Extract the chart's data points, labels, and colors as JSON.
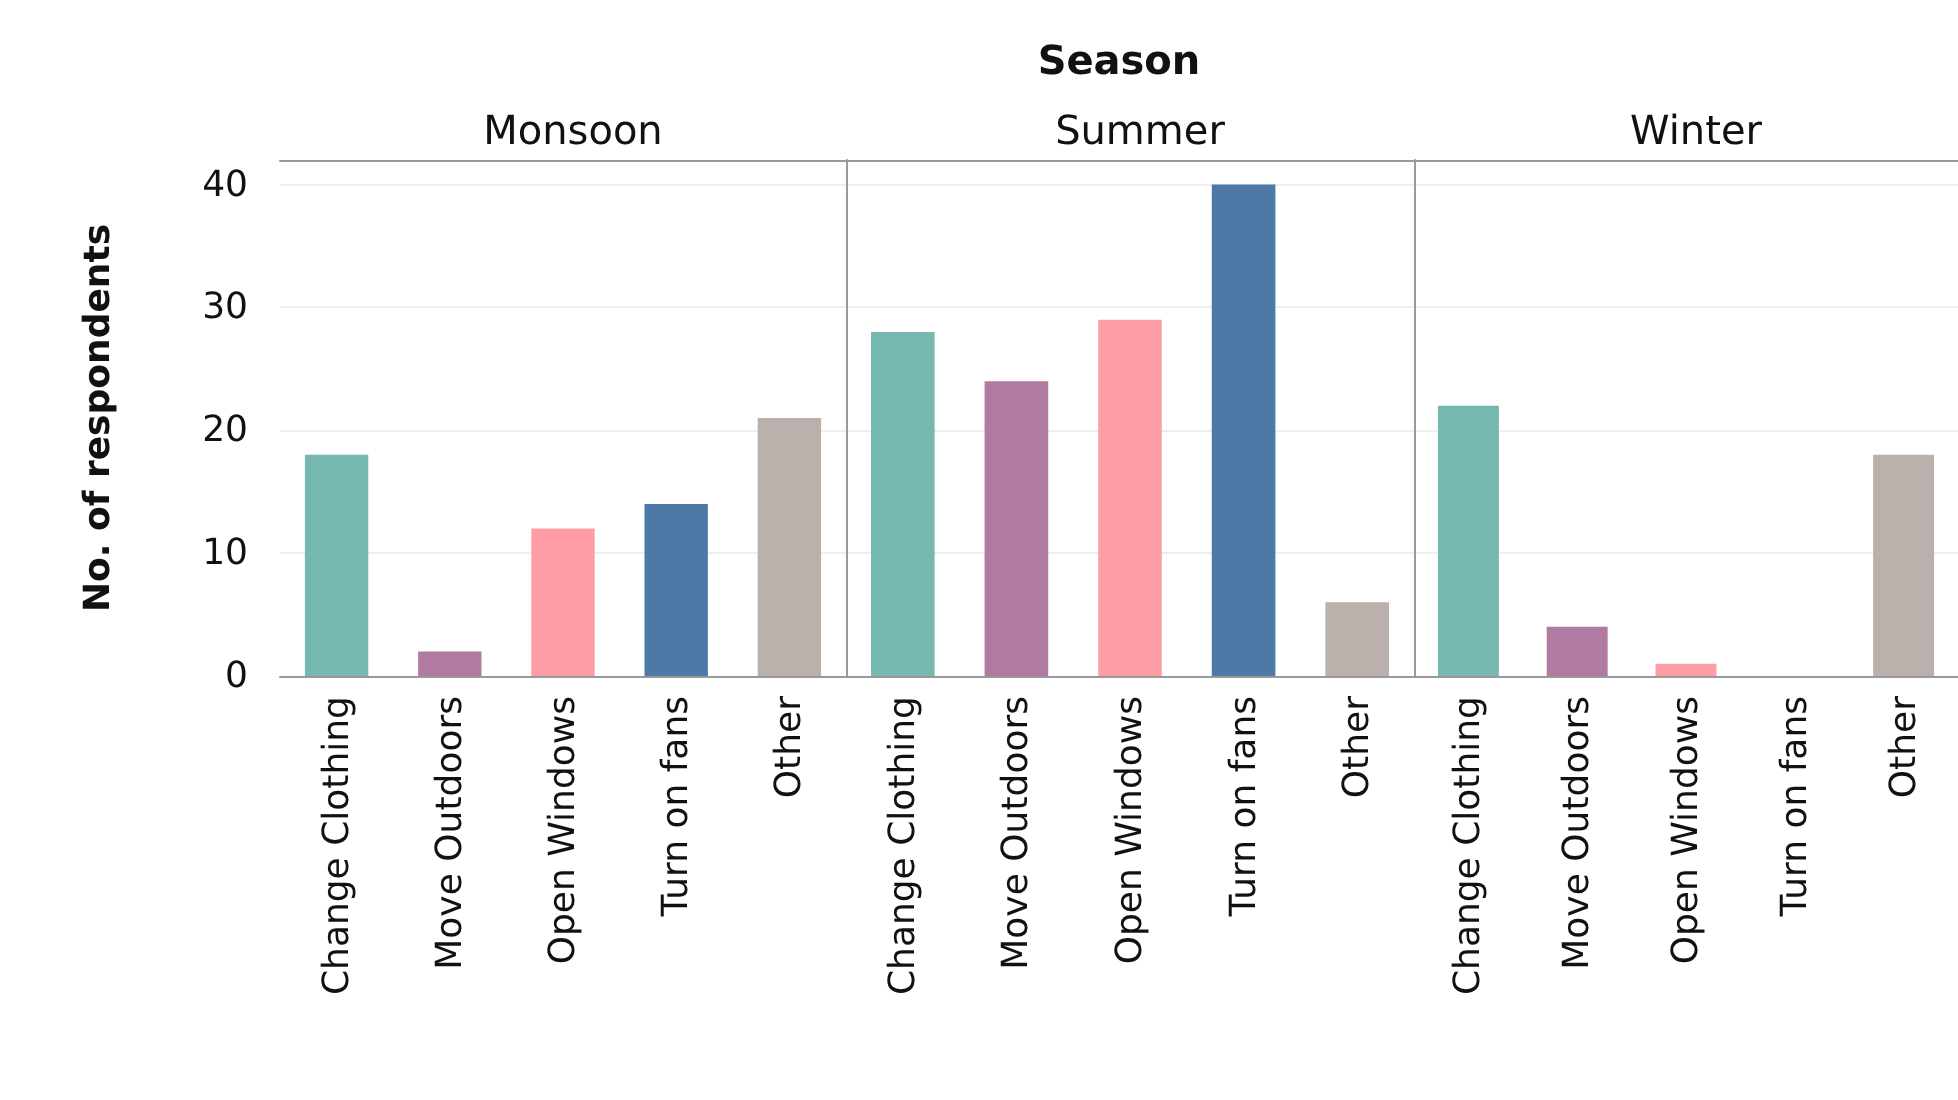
{
  "chart_data": [
    {
      "type": "bar",
      "title": "Monsoon",
      "annotations": [
        "Season"
      ],
      "ylabel": "No. of respondents",
      "categories": [
        "Change Clothing",
        "Move Outdoors",
        "Open Windows",
        "Turn on fans",
        "Other"
      ],
      "values": [
        18,
        2,
        12,
        14,
        21
      ],
      "colors": [
        "#76b7b2",
        "#b07aa1",
        "#ff9da7",
        "#4e79a7",
        "#bab0ac"
      ],
      "ylim": [
        0,
        42
      ],
      "yticks": [
        0,
        10,
        20,
        30,
        40
      ],
      "grid": "y"
    },
    {
      "type": "bar",
      "title": "Summer",
      "categories": [
        "Change Clothing",
        "Move Outdoors",
        "Open Windows",
        "Turn on fans",
        "Other"
      ],
      "values": [
        28,
        24,
        29,
        40,
        6
      ],
      "colors": [
        "#76b7b2",
        "#b07aa1",
        "#ff9da7",
        "#4e79a7",
        "#bab0ac"
      ],
      "ylim": [
        0,
        42
      ],
      "yticks": [
        0,
        10,
        20,
        30,
        40
      ],
      "grid": "y",
      "tick_labels": "x"
    },
    {
      "type": "bar",
      "title": "Winter",
      "categories": [
        "Change Clothing",
        "Move Outdoors",
        "Open Windows",
        "Turn on fans",
        "Other"
      ],
      "values": [
        22,
        4,
        1,
        0,
        18
      ],
      "colors": [
        "#76b7b2",
        "#b07aa1",
        "#ff9da7",
        "#4e79a7",
        "#bab0ac"
      ],
      "ylim": [
        0,
        42
      ],
      "yticks": [
        0,
        10,
        20,
        30,
        40
      ],
      "grid": "y",
      "tick_labels": "x"
    }
  ]
}
